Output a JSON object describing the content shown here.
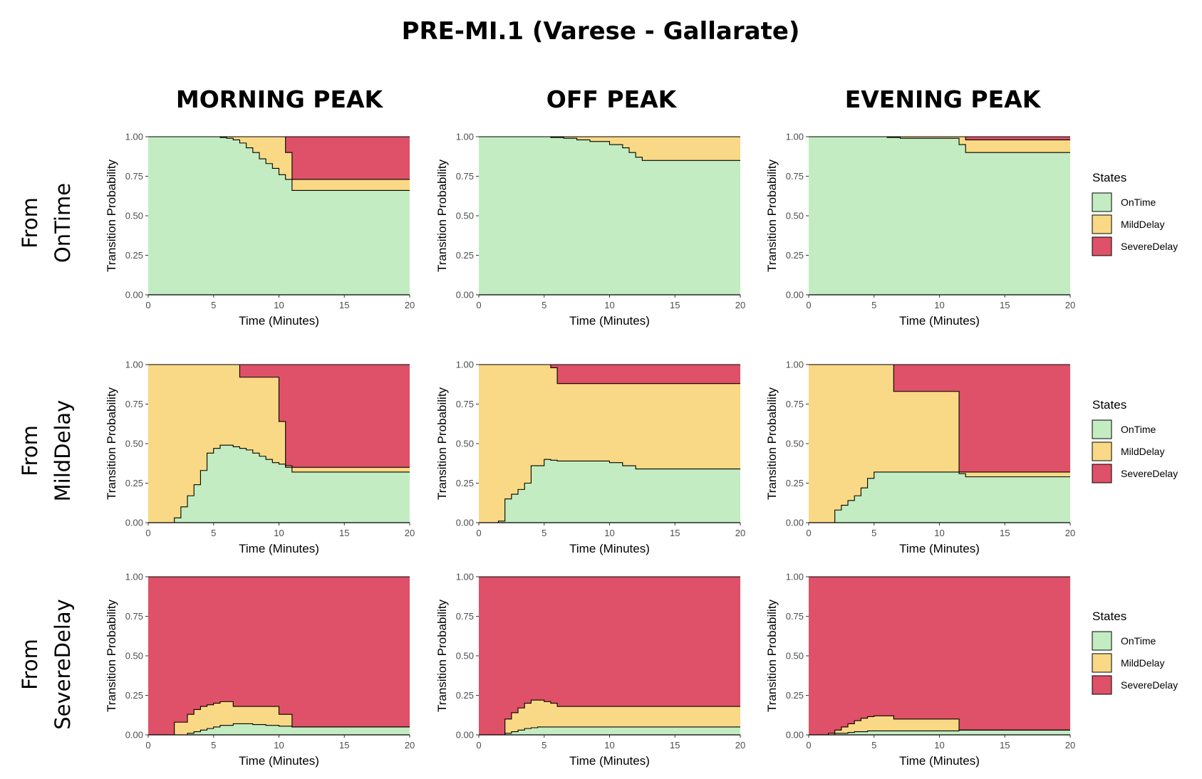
{
  "title": "PRE-MI.1 (Varese - Gallarate)",
  "columns": [
    "MORNING PEAK",
    "OFF PEAK",
    "EVENING PEAK"
  ],
  "rows": [
    {
      "line1": "From",
      "line2": "OnTime"
    },
    {
      "line1": "From",
      "line2": "MildDelay"
    },
    {
      "line1": "From",
      "line2": "SevereDelay"
    }
  ],
  "legend": {
    "title": "States",
    "items": [
      "OnTime",
      "MildDelay",
      "SevereDelay"
    ]
  },
  "colors": {
    "OnTime": "#c3ecc2",
    "MildDelay": "#f9d985",
    "SevereDelay": "#de5168"
  },
  "chart_data": [
    {
      "type": "area",
      "row": "From OnTime",
      "column": "MORNING PEAK",
      "xlabel": "Time (Minutes)",
      "ylabel": "Transition Probability",
      "xlim": [
        0,
        20
      ],
      "ylim": [
        0,
        1
      ],
      "xticks": [
        "0",
        "5",
        "10",
        "15",
        "20"
      ],
      "yticks": [
        "0.00",
        "0.25",
        "0.50",
        "0.75",
        "1.00"
      ],
      "x": [
        0,
        5.5,
        6,
        6.5,
        7,
        7.5,
        8,
        8.5,
        9,
        9.5,
        10,
        10.5,
        11,
        20
      ],
      "series": [
        {
          "name": "OnTime",
          "values": [
            1,
            0.995,
            0.99,
            0.98,
            0.96,
            0.93,
            0.9,
            0.86,
            0.83,
            0.8,
            0.76,
            0.73,
            0.66,
            0.66
          ]
        },
        {
          "name": "MildDelay",
          "values": [
            0,
            0.005,
            0.01,
            0.02,
            0.04,
            0.07,
            0.1,
            0.14,
            0.17,
            0.2,
            0.24,
            0.17,
            0.07,
            0.07
          ]
        },
        {
          "name": "SevereDelay",
          "values": [
            0,
            0,
            0,
            0,
            0,
            0,
            0,
            0,
            0,
            0,
            0,
            0.1,
            0.27,
            0.27
          ]
        }
      ]
    },
    {
      "type": "area",
      "row": "From OnTime",
      "column": "OFF PEAK",
      "xlabel": "Time (Minutes)",
      "ylabel": "Transition Probability",
      "xlim": [
        0,
        20
      ],
      "ylim": [
        0,
        1
      ],
      "xticks": [
        "0",
        "5",
        "10",
        "15",
        "20"
      ],
      "yticks": [
        "0.00",
        "0.25",
        "0.50",
        "0.75",
        "1.00"
      ],
      "x": [
        0,
        5.5,
        6.5,
        7.5,
        8.5,
        10,
        11,
        11.5,
        12,
        12.5,
        20
      ],
      "series": [
        {
          "name": "OnTime",
          "values": [
            1,
            0.995,
            0.99,
            0.98,
            0.97,
            0.95,
            0.93,
            0.9,
            0.87,
            0.85,
            0.85
          ]
        },
        {
          "name": "MildDelay",
          "values": [
            0,
            0.005,
            0.01,
            0.02,
            0.03,
            0.05,
            0.07,
            0.1,
            0.13,
            0.15,
            0.15
          ]
        },
        {
          "name": "SevereDelay",
          "values": [
            0,
            0,
            0,
            0,
            0,
            0,
            0,
            0,
            0,
            0,
            0
          ]
        }
      ]
    },
    {
      "type": "area",
      "row": "From OnTime",
      "column": "EVENING PEAK",
      "xlabel": "Time (Minutes)",
      "ylabel": "Transition Probability",
      "xlim": [
        0,
        20
      ],
      "ylim": [
        0,
        1
      ],
      "xticks": [
        "0",
        "5",
        "10",
        "15",
        "20"
      ],
      "yticks": [
        "0.00",
        "0.25",
        "0.50",
        "0.75",
        "1.00"
      ],
      "x": [
        0,
        6,
        7,
        11.5,
        12,
        20
      ],
      "series": [
        {
          "name": "OnTime",
          "values": [
            1,
            0.995,
            0.99,
            0.95,
            0.9,
            0.9
          ]
        },
        {
          "name": "MildDelay",
          "values": [
            0,
            0.005,
            0.01,
            0.05,
            0.08,
            0.08
          ]
        },
        {
          "name": "SevereDelay",
          "values": [
            0,
            0,
            0,
            0,
            0.02,
            0.02
          ]
        }
      ]
    },
    {
      "type": "area",
      "row": "From MildDelay",
      "column": "MORNING PEAK",
      "xlabel": "Time (Minutes)",
      "ylabel": "Transition Probability",
      "xlim": [
        0,
        20
      ],
      "ylim": [
        0,
        1
      ],
      "xticks": [
        "0",
        "5",
        "10",
        "15",
        "20"
      ],
      "yticks": [
        "0.00",
        "0.25",
        "0.50",
        "0.75",
        "1.00"
      ],
      "x": [
        0,
        2,
        2.5,
        3,
        3.5,
        4,
        4.5,
        5,
        5.5,
        6.5,
        7,
        7.5,
        8,
        8.5,
        9,
        9.5,
        10,
        10.5,
        11,
        20
      ],
      "series": [
        {
          "name": "OnTime",
          "values": [
            0,
            0.03,
            0.1,
            0.17,
            0.24,
            0.33,
            0.44,
            0.47,
            0.49,
            0.48,
            0.47,
            0.46,
            0.44,
            0.42,
            0.4,
            0.38,
            0.37,
            0.35,
            0.32,
            0.32
          ]
        },
        {
          "name": "MildDelay",
          "values": [
            1,
            0.97,
            0.9,
            0.83,
            0.76,
            0.67,
            0.56,
            0.53,
            0.51,
            0.52,
            0.45,
            0.46,
            0.48,
            0.5,
            0.52,
            0.54,
            0.27,
            0.01,
            0.03,
            0.03
          ]
        },
        {
          "name": "SevereDelay",
          "values": [
            0,
            0,
            0,
            0,
            0,
            0,
            0,
            0,
            0,
            0,
            0.08,
            0.08,
            0.08,
            0.08,
            0.08,
            0.08,
            0.36,
            0.64,
            0.65,
            0.65
          ]
        }
      ]
    },
    {
      "type": "area",
      "row": "From MildDelay",
      "column": "OFF PEAK",
      "xlabel": "Time (Minutes)",
      "ylabel": "Transition Probability",
      "xlim": [
        0,
        20
      ],
      "ylim": [
        0,
        1
      ],
      "xticks": [
        "0",
        "5",
        "10",
        "15",
        "20"
      ],
      "yticks": [
        "0.00",
        "0.25",
        "0.50",
        "0.75",
        "1.00"
      ],
      "x": [
        0,
        1.5,
        2,
        2.5,
        3,
        3.5,
        4,
        5,
        5.5,
        6,
        9,
        10,
        11,
        12,
        20
      ],
      "series": [
        {
          "name": "OnTime",
          "values": [
            0,
            0.01,
            0.15,
            0.18,
            0.21,
            0.25,
            0.36,
            0.4,
            0.395,
            0.39,
            0.39,
            0.38,
            0.36,
            0.34,
            0.34
          ]
        },
        {
          "name": "MildDelay",
          "values": [
            1,
            0.99,
            0.85,
            0.82,
            0.79,
            0.75,
            0.64,
            0.6,
            0.585,
            0.49,
            0.49,
            0.5,
            0.52,
            0.54,
            0.54
          ]
        },
        {
          "name": "SevereDelay",
          "values": [
            0,
            0,
            0,
            0,
            0,
            0,
            0,
            0,
            0.02,
            0.12,
            0.12,
            0.12,
            0.12,
            0.12,
            0.12
          ]
        }
      ]
    },
    {
      "type": "area",
      "row": "From MildDelay",
      "column": "EVENING PEAK",
      "xlabel": "Time (Minutes)",
      "ylabel": "Transition Probability",
      "xlim": [
        0,
        20
      ],
      "ylim": [
        0,
        1
      ],
      "xticks": [
        "0",
        "5",
        "10",
        "15",
        "20"
      ],
      "yticks": [
        "0.00",
        "0.25",
        "0.50",
        "0.75",
        "1.00"
      ],
      "x": [
        0,
        2,
        2.5,
        3,
        3.5,
        4,
        4.5,
        5,
        6.5,
        11.5,
        12,
        20
      ],
      "series": [
        {
          "name": "OnTime",
          "values": [
            0,
            0.08,
            0.11,
            0.14,
            0.17,
            0.22,
            0.28,
            0.32,
            0.32,
            0.31,
            0.29,
            0.29
          ]
        },
        {
          "name": "MildDelay",
          "values": [
            1,
            0.92,
            0.89,
            0.86,
            0.83,
            0.78,
            0.72,
            0.68,
            0.51,
            0.01,
            0.03,
            0.03
          ]
        },
        {
          "name": "SevereDelay",
          "values": [
            0,
            0,
            0,
            0,
            0,
            0,
            0,
            0,
            0.17,
            0.68,
            0.68,
            0.68
          ]
        }
      ]
    },
    {
      "type": "area",
      "row": "From SevereDelay",
      "column": "MORNING PEAK",
      "xlabel": "Time (Minutes)",
      "ylabel": "Transition Probability",
      "xlim": [
        0,
        20
      ],
      "ylim": [
        0,
        1
      ],
      "xticks": [
        "0",
        "5",
        "10",
        "15",
        "20"
      ],
      "yticks": [
        "0.00",
        "0.25",
        "0.50",
        "0.75",
        "1.00"
      ],
      "x": [
        0,
        2,
        3,
        3.5,
        4,
        4.5,
        5,
        5.5,
        6.5,
        8,
        9,
        10,
        11,
        20
      ],
      "series": [
        {
          "name": "OnTime",
          "values": [
            0,
            0,
            0.01,
            0.02,
            0.03,
            0.04,
            0.05,
            0.06,
            0.07,
            0.065,
            0.06,
            0.055,
            0.05,
            0.05
          ]
        },
        {
          "name": "MildDelay",
          "values": [
            0,
            0.08,
            0.12,
            0.14,
            0.15,
            0.15,
            0.15,
            0.15,
            0.11,
            0.115,
            0.12,
            0.075,
            0,
            0
          ]
        },
        {
          "name": "SevereDelay",
          "values": [
            1,
            0.92,
            0.87,
            0.84,
            0.82,
            0.81,
            0.8,
            0.79,
            0.82,
            0.82,
            0.82,
            0.87,
            0.95,
            0.95
          ]
        }
      ]
    },
    {
      "type": "area",
      "row": "From SevereDelay",
      "column": "OFF PEAK",
      "xlabel": "Time (Minutes)",
      "ylabel": "Transition Probability",
      "xlim": [
        0,
        20
      ],
      "ylim": [
        0,
        1
      ],
      "xticks": [
        "0",
        "5",
        "10",
        "15",
        "20"
      ],
      "yticks": [
        "0.00",
        "0.25",
        "0.50",
        "0.75",
        "1.00"
      ],
      "x": [
        0,
        2,
        2.5,
        3,
        3.5,
        4,
        4.5,
        5,
        5.5,
        6,
        20
      ],
      "series": [
        {
          "name": "OnTime",
          "values": [
            0,
            0.01,
            0.02,
            0.03,
            0.04,
            0.045,
            0.05,
            0.05,
            0.05,
            0.05,
            0.05
          ]
        },
        {
          "name": "MildDelay",
          "values": [
            0,
            0.09,
            0.12,
            0.14,
            0.16,
            0.175,
            0.17,
            0.16,
            0.15,
            0.13,
            0.13
          ]
        },
        {
          "name": "SevereDelay",
          "values": [
            1,
            0.9,
            0.86,
            0.83,
            0.8,
            0.78,
            0.78,
            0.79,
            0.8,
            0.82,
            0.82
          ]
        }
      ]
    },
    {
      "type": "area",
      "row": "From SevereDelay",
      "column": "EVENING PEAK",
      "xlabel": "Time (Minutes)",
      "ylabel": "Transition Probability",
      "xlim": [
        0,
        20
      ],
      "ylim": [
        0,
        1
      ],
      "xticks": [
        "0",
        "5",
        "10",
        "15",
        "20"
      ],
      "yticks": [
        "0.00",
        "0.25",
        "0.50",
        "0.75",
        "1.00"
      ],
      "x": [
        0,
        1.5,
        2,
        2.5,
        3,
        3.5,
        4,
        4.5,
        5,
        6.5,
        11.5,
        20
      ],
      "series": [
        {
          "name": "OnTime",
          "values": [
            0,
            0,
            0.01,
            0.01,
            0.015,
            0.02,
            0.02,
            0.025,
            0.025,
            0.025,
            0.03,
            0.03
          ]
        },
        {
          "name": "MildDelay",
          "values": [
            0,
            0.01,
            0.02,
            0.04,
            0.055,
            0.07,
            0.085,
            0.09,
            0.095,
            0.075,
            0,
            0
          ]
        },
        {
          "name": "SevereDelay",
          "values": [
            1,
            0.99,
            0.97,
            0.95,
            0.93,
            0.91,
            0.895,
            0.885,
            0.88,
            0.9,
            0.97,
            0.97
          ]
        }
      ]
    }
  ]
}
